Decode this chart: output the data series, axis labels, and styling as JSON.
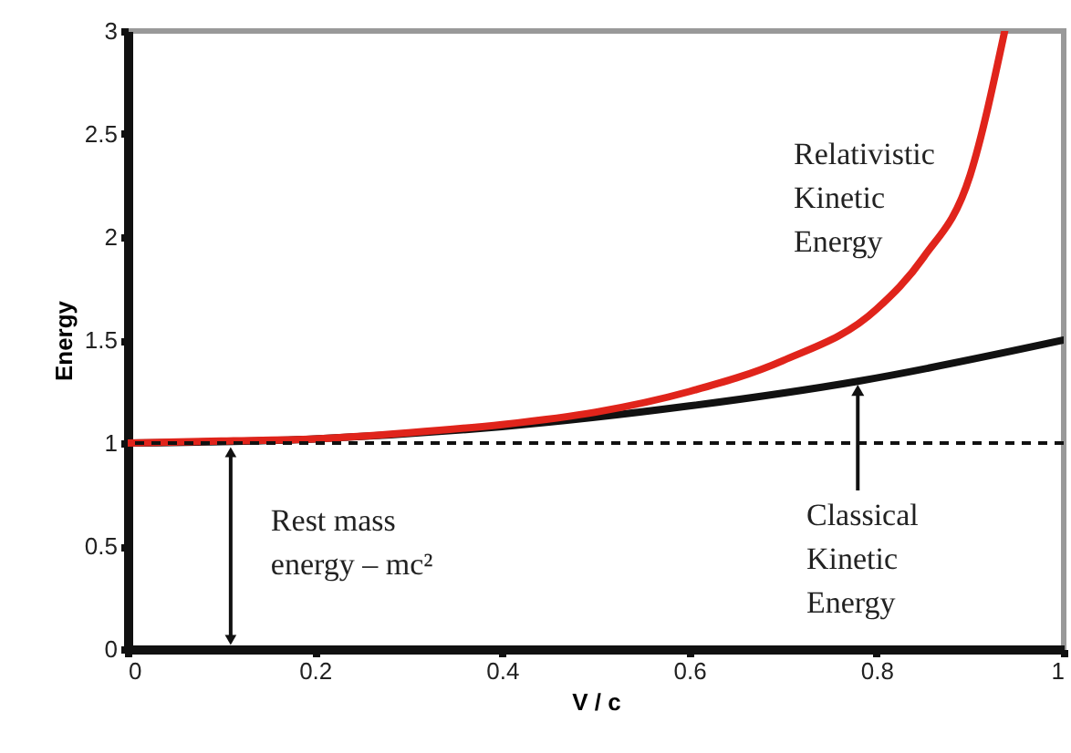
{
  "chart_data": {
    "type": "line",
    "xlabel": "V / c",
    "ylabel": "Energy",
    "xlim": [
      0,
      1
    ],
    "ylim": [
      0,
      3
    ],
    "xticks": [
      0,
      0.2,
      0.4,
      0.6,
      0.8,
      1
    ],
    "yticks": [
      0,
      0.5,
      1,
      1.5,
      2,
      2.5,
      3
    ],
    "grid": false,
    "marker": "none",
    "line_style": "solid",
    "series": [
      {
        "name": "Relativistic Kinetic Energy",
        "color": "#e0241b",
        "x": [
          0,
          0.1,
          0.2,
          0.3,
          0.4,
          0.5,
          0.6,
          0.7,
          0.8,
          0.85,
          0.9,
          0.937
        ],
        "values": [
          1,
          1.01,
          1.02,
          1.05,
          1.09,
          1.15,
          1.25,
          1.4,
          1.65,
          1.9,
          2.3,
          3
        ]
      },
      {
        "name": "Classical Kinetic Energy",
        "color": "#111111",
        "x": [
          0,
          0.2,
          0.4,
          0.6,
          0.78,
          1
        ],
        "values": [
          1,
          1.02,
          1.08,
          1.18,
          1.3,
          1.5
        ]
      }
    ],
    "ref_lines": [
      {
        "axis": "y",
        "value": 1,
        "color": "#111111",
        "line_style": "dashed"
      }
    ],
    "annotations": [
      {
        "text": "Rest mass energy – mc²",
        "x": 0.11,
        "y": 1
      }
    ]
  }
}
